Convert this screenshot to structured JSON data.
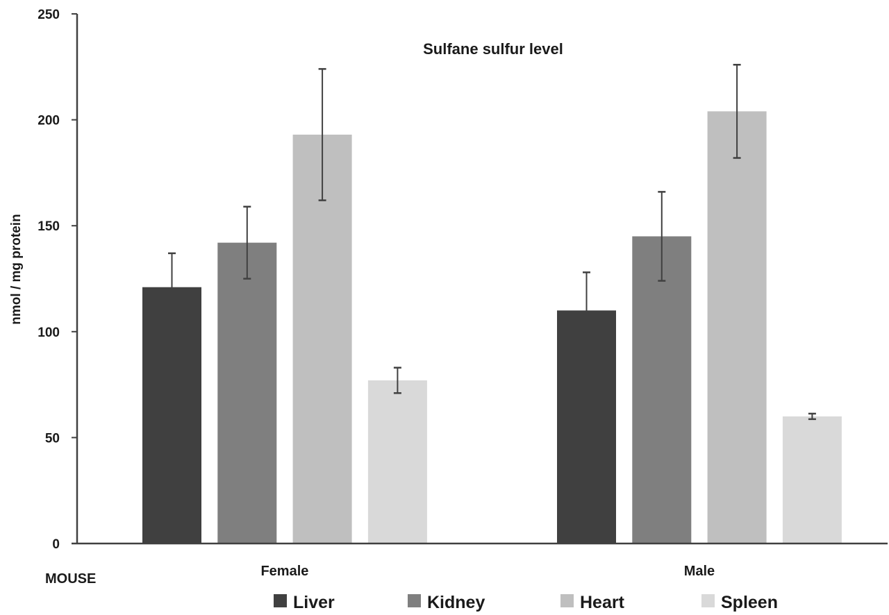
{
  "chart_data": {
    "type": "bar",
    "title": "Sulfane sulfur level",
    "xlabel": "MOUSE",
    "ylabel": "nmol / mg protein",
    "ylim": [
      0,
      250
    ],
    "yticks": [
      0,
      50,
      100,
      150,
      200,
      250
    ],
    "grid": false,
    "legend_position": "bottom",
    "categories": [
      "Female",
      "Male"
    ],
    "series": [
      {
        "name": "Liver",
        "color": "#404040",
        "values": [
          121,
          110
        ],
        "errors": [
          16,
          18
        ]
      },
      {
        "name": "Kidney",
        "color": "#7f7f7f",
        "values": [
          142,
          145
        ],
        "errors": [
          17,
          21
        ]
      },
      {
        "name": "Heart",
        "color": "#bfbfbf",
        "values": [
          193,
          204
        ],
        "errors": [
          31,
          22
        ]
      },
      {
        "name": "Spleen",
        "color": "#d9d9d9",
        "values": [
          77,
          60
        ],
        "errors": [
          6,
          1.3
        ]
      }
    ],
    "error_bar_color": "#404040",
    "axis_color": "#404040"
  }
}
